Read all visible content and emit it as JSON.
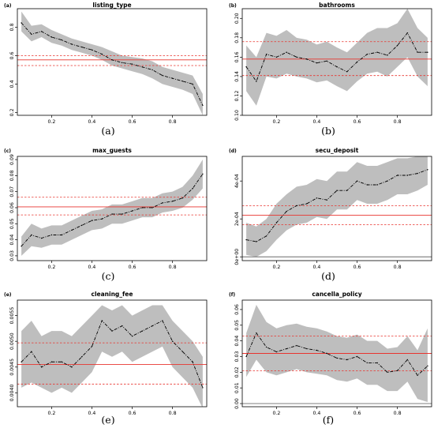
{
  "chart_data": [
    {
      "type": "line",
      "panel": "(a)",
      "caption": "(a)",
      "title": "listing_type",
      "xlim": [
        0.03,
        0.97
      ],
      "ylim": [
        0.18,
        0.93
      ],
      "xticks": [
        0.2,
        0.4,
        0.6,
        0.8
      ],
      "xtick_labels": [
        "0.2",
        "0.4",
        "0.6",
        "0.8"
      ],
      "yticks": [
        0.2,
        0.4,
        0.6,
        0.8
      ],
      "ytick_labels": [
        "0.2",
        "0.4",
        "0.6",
        "0.8"
      ],
      "x": [
        0.05,
        0.1,
        0.15,
        0.2,
        0.25,
        0.3,
        0.35,
        0.4,
        0.45,
        0.5,
        0.55,
        0.6,
        0.65,
        0.7,
        0.75,
        0.8,
        0.85,
        0.9,
        0.95
      ],
      "mean": [
        0.83,
        0.75,
        0.77,
        0.73,
        0.71,
        0.68,
        0.66,
        0.64,
        0.61,
        0.57,
        0.55,
        0.54,
        0.52,
        0.5,
        0.46,
        0.44,
        0.42,
        0.4,
        0.25
      ],
      "upper": [
        0.91,
        0.81,
        0.82,
        0.78,
        0.75,
        0.72,
        0.7,
        0.68,
        0.66,
        0.63,
        0.6,
        0.59,
        0.58,
        0.56,
        0.52,
        0.5,
        0.48,
        0.46,
        0.33
      ],
      "lower": [
        0.77,
        0.7,
        0.73,
        0.69,
        0.67,
        0.64,
        0.62,
        0.6,
        0.57,
        0.53,
        0.51,
        0.49,
        0.47,
        0.44,
        0.4,
        0.38,
        0.36,
        0.33,
        0.18
      ],
      "hline": 0.57,
      "hline_band": [
        0.53,
        0.6
      ],
      "zero_line": null
    },
    {
      "type": "line",
      "panel": "(b)",
      "caption": "(b)",
      "title": "bathrooms",
      "xlim": [
        0.03,
        0.97
      ],
      "ylim": [
        0.1,
        0.21
      ],
      "xticks": [
        0.2,
        0.4,
        0.6,
        0.8
      ],
      "xtick_labels": [
        "0.2",
        "0.4",
        "0.6",
        "0.8"
      ],
      "yticks": [
        0.1,
        0.12,
        0.14,
        0.16,
        0.18,
        0.2
      ],
      "ytick_labels": [
        "0.10",
        "0.12",
        "0.14",
        "0.16",
        "0.18",
        "0.20"
      ],
      "x": [
        0.05,
        0.1,
        0.15,
        0.2,
        0.25,
        0.3,
        0.35,
        0.4,
        0.45,
        0.5,
        0.55,
        0.6,
        0.65,
        0.7,
        0.75,
        0.8,
        0.85,
        0.9,
        0.95
      ],
      "mean": [
        0.15,
        0.135,
        0.163,
        0.16,
        0.165,
        0.16,
        0.158,
        0.154,
        0.156,
        0.15,
        0.145,
        0.155,
        0.163,
        0.165,
        0.162,
        0.172,
        0.185,
        0.165,
        0.165
      ],
      "upper": [
        0.172,
        0.16,
        0.185,
        0.182,
        0.188,
        0.18,
        0.178,
        0.173,
        0.176,
        0.17,
        0.165,
        0.175,
        0.185,
        0.19,
        0.19,
        0.195,
        0.21,
        0.19,
        0.18
      ],
      "lower": [
        0.125,
        0.11,
        0.14,
        0.138,
        0.143,
        0.14,
        0.138,
        0.134,
        0.136,
        0.13,
        0.125,
        0.135,
        0.143,
        0.145,
        0.14,
        0.15,
        0.16,
        0.14,
        0.13
      ],
      "hline": 0.158,
      "hline_band": [
        0.141,
        0.176
      ],
      "zero_line": null
    },
    {
      "type": "line",
      "panel": "(c)",
      "caption": "(c)",
      "title": "max_guests",
      "xlim": [
        0.03,
        0.97
      ],
      "ylim": [
        0.027,
        0.092
      ],
      "xticks": [
        0.2,
        0.4,
        0.6,
        0.8
      ],
      "xtick_labels": [
        "0.2",
        "0.4",
        "0.6",
        "0.8"
      ],
      "yticks": [
        0.03,
        0.04,
        0.05,
        0.06,
        0.07,
        0.08,
        0.09
      ],
      "ytick_labels": [
        "0.03",
        "0.04",
        "0.05",
        "0.06",
        "0.07",
        "0.08",
        "0.09"
      ],
      "x": [
        0.05,
        0.1,
        0.15,
        0.2,
        0.25,
        0.3,
        0.35,
        0.4,
        0.45,
        0.5,
        0.55,
        0.6,
        0.65,
        0.7,
        0.75,
        0.8,
        0.85,
        0.9,
        0.95
      ],
      "mean": [
        0.036,
        0.043,
        0.041,
        0.043,
        0.043,
        0.046,
        0.049,
        0.052,
        0.053,
        0.056,
        0.056,
        0.058,
        0.06,
        0.06,
        0.063,
        0.064,
        0.066,
        0.072,
        0.081
      ],
      "upper": [
        0.042,
        0.05,
        0.047,
        0.049,
        0.049,
        0.052,
        0.055,
        0.058,
        0.059,
        0.062,
        0.062,
        0.064,
        0.066,
        0.066,
        0.069,
        0.07,
        0.073,
        0.08,
        0.09
      ],
      "lower": [
        0.03,
        0.036,
        0.035,
        0.037,
        0.037,
        0.04,
        0.043,
        0.046,
        0.047,
        0.05,
        0.05,
        0.052,
        0.054,
        0.054,
        0.057,
        0.058,
        0.06,
        0.065,
        0.072
      ],
      "hline": 0.0605,
      "hline_band": [
        0.0555,
        0.0665
      ],
      "zero_line": null
    },
    {
      "type": "line",
      "panel": "(d)",
      "caption": "(d)",
      "title": "secu_deposit",
      "xlim": [
        0.03,
        0.97
      ],
      "ylim": [
        -2e-05,
        0.00053
      ],
      "xticks": [
        0.2,
        0.4,
        0.6,
        0.8
      ],
      "xtick_labels": [
        "0.2",
        "0.4",
        "0.6",
        "0.8"
      ],
      "yticks": [
        0,
        0.0002,
        0.0004
      ],
      "ytick_labels": [
        "0e+00",
        "2e-04",
        "4e-04"
      ],
      "x": [
        0.05,
        0.1,
        0.15,
        0.2,
        0.25,
        0.3,
        0.35,
        0.4,
        0.45,
        0.5,
        0.55,
        0.6,
        0.65,
        0.7,
        0.75,
        0.8,
        0.85,
        0.9,
        0.95
      ],
      "mean": [
        9e-05,
        8e-05,
        0.00011,
        0.00018,
        0.00024,
        0.00027,
        0.00028,
        0.00031,
        0.0003,
        0.00035,
        0.00035,
        0.0004,
        0.00038,
        0.00038,
        0.0004,
        0.00043,
        0.00043,
        0.00044,
        0.00046
      ],
      "upper": [
        0.00018,
        0.00016,
        0.0002,
        0.00028,
        0.00033,
        0.00037,
        0.00038,
        0.00041,
        0.0004,
        0.00045,
        0.00045,
        0.0005,
        0.00048,
        0.00048,
        0.0005,
        0.00052,
        0.00052,
        0.00053,
        0.00054
      ],
      "lower": [
        1e-05,
        0.0,
        3e-05,
        9e-05,
        0.00014,
        0.00017,
        0.00018,
        0.00021,
        0.0002,
        0.00025,
        0.00025,
        0.0003,
        0.00028,
        0.00028,
        0.0003,
        0.00033,
        0.00033,
        0.00035,
        0.00038
      ],
      "hline": 0.00022,
      "hline_band": [
        0.00017,
        0.00027
      ],
      "zero_line": 0
    },
    {
      "type": "line",
      "panel": "(e)",
      "caption": "(e)",
      "title": "cleaning_fee",
      "xlim": [
        0.03,
        0.97
      ],
      "ylim": [
        0.00373,
        0.0058
      ],
      "xticks": [
        0.2,
        0.4,
        0.6,
        0.8
      ],
      "xtick_labels": [
        "0.2",
        "0.4",
        "0.6",
        "0.8"
      ],
      "yticks": [
        0.004,
        0.0045,
        0.005,
        0.0055
      ],
      "ytick_labels": [
        "0.0040",
        "0.0045",
        "0.0050",
        "0.0055"
      ],
      "x": [
        0.05,
        0.1,
        0.15,
        0.2,
        0.25,
        0.3,
        0.35,
        0.4,
        0.45,
        0.5,
        0.55,
        0.6,
        0.65,
        0.7,
        0.75,
        0.8,
        0.85,
        0.9,
        0.95
      ],
      "mean": [
        0.0046,
        0.0048,
        0.0045,
        0.0046,
        0.0046,
        0.0045,
        0.0047,
        0.0049,
        0.0054,
        0.0052,
        0.0053,
        0.0051,
        0.0052,
        0.0053,
        0.0054,
        0.005,
        0.0048,
        0.0046,
        0.0041
      ],
      "upper": [
        0.0052,
        0.0054,
        0.0051,
        0.0052,
        0.0052,
        0.0051,
        0.0053,
        0.0055,
        0.0057,
        0.0056,
        0.0057,
        0.0055,
        0.0056,
        0.0057,
        0.0057,
        0.0054,
        0.0052,
        0.005,
        0.0047
      ],
      "lower": [
        0.0041,
        0.0042,
        0.0041,
        0.004,
        0.0041,
        0.004,
        0.0042,
        0.0044,
        0.0048,
        0.0047,
        0.0048,
        0.0046,
        0.0047,
        0.0048,
        0.0049,
        0.0045,
        0.0043,
        0.0041,
        0.0037
      ],
      "hline": 0.00455,
      "hline_band": [
        0.00417,
        0.00497
      ],
      "zero_line": null
    },
    {
      "type": "line",
      "panel": "(f)",
      "caption": "(f)",
      "title": "cancella_policy",
      "xlim": [
        0.03,
        0.97
      ],
      "ylim": [
        -0.002,
        0.066
      ],
      "xticks": [
        0.2,
        0.4,
        0.6,
        0.8
      ],
      "xtick_labels": [
        "0.2",
        "0.4",
        "0.6",
        "0.8"
      ],
      "yticks": [
        0,
        0.01,
        0.02,
        0.03,
        0.04,
        0.05,
        0.06
      ],
      "ytick_labels": [
        "0.00",
        "0.01",
        "0.02",
        "0.03",
        "0.04",
        "0.05",
        "0.06"
      ],
      "x": [
        0.05,
        0.1,
        0.15,
        0.2,
        0.25,
        0.3,
        0.35,
        0.4,
        0.45,
        0.5,
        0.55,
        0.6,
        0.65,
        0.7,
        0.75,
        0.8,
        0.85,
        0.9,
        0.95
      ],
      "mean": [
        0.03,
        0.045,
        0.036,
        0.033,
        0.035,
        0.037,
        0.035,
        0.034,
        0.032,
        0.029,
        0.028,
        0.03,
        0.026,
        0.026,
        0.02,
        0.021,
        0.028,
        0.018,
        0.024
      ],
      "upper": [
        0.045,
        0.063,
        0.052,
        0.048,
        0.05,
        0.051,
        0.049,
        0.048,
        0.046,
        0.043,
        0.042,
        0.044,
        0.04,
        0.04,
        0.035,
        0.036,
        0.043,
        0.034,
        0.048
      ],
      "lower": [
        0.017,
        0.028,
        0.02,
        0.018,
        0.02,
        0.022,
        0.02,
        0.019,
        0.018,
        0.015,
        0.014,
        0.016,
        0.012,
        0.012,
        0.008,
        0.008,
        0.014,
        0.003,
        0.001
      ],
      "hline": 0.032,
      "hline_band": [
        0.021,
        0.043
      ],
      "zero_line": 0
    }
  ],
  "colors": {
    "band": "#bebebe",
    "mean_line": "#000000",
    "reference_line": "#e8342f",
    "zero_line": "#555555"
  }
}
